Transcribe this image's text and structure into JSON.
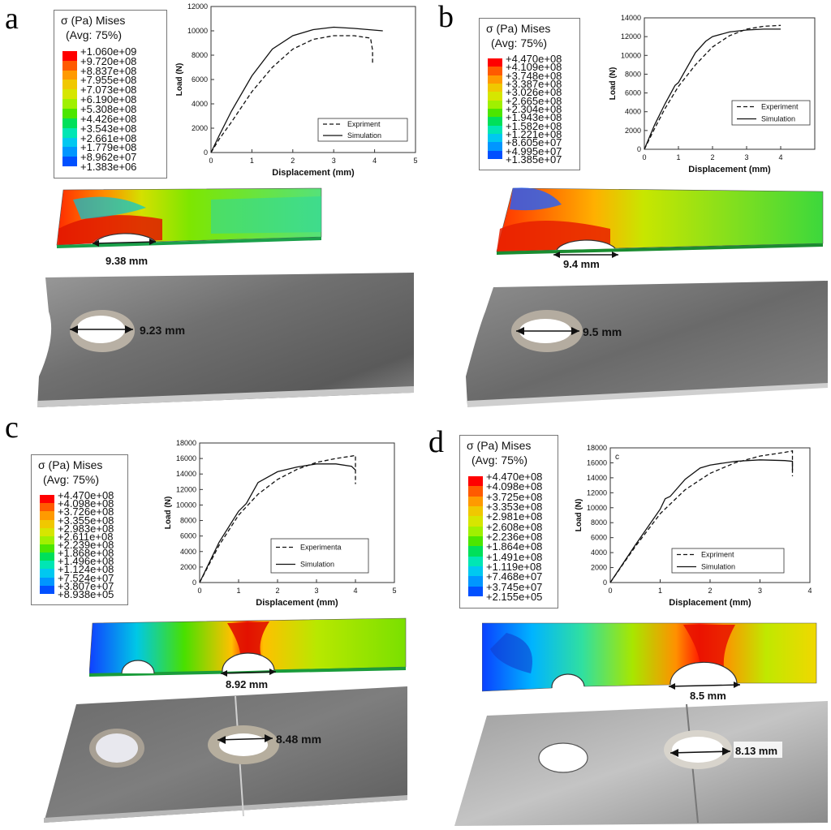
{
  "panels": [
    {
      "id": "a",
      "letter": "a",
      "legend": {
        "title1": "σ (Pa)  Mises",
        "title2": "(Avg: 75%)",
        "values": [
          "+1.060e+09",
          "+9.720e+08",
          "+8.837e+08",
          "+7.955e+08",
          "+7.073e+08",
          "+6.190e+08",
          "+5.308e+08",
          "+4.426e+08",
          "+3.543e+08",
          "+2.661e+08",
          "+1.779e+08",
          "+8.962e+07",
          "+1.383e+06"
        ]
      },
      "sim_measure": "9.38 mm",
      "exp_measure": "9.23 mm"
    },
    {
      "id": "b",
      "letter": "b",
      "legend": {
        "title1": "σ (Pa)  Mises",
        "title2": "(Avg: 75%)",
        "values": [
          "+4.470e+08",
          "+4.109e+08",
          "+3.748e+08",
          "+3.387e+08",
          "+3.026e+08",
          "+2.665e+08",
          "+2.304e+08",
          "+1.943e+08",
          "+1.582e+08",
          "+1.221e+08",
          "+8.605e+07",
          "+4.995e+07",
          "+1.385e+07"
        ]
      },
      "sim_measure": "9.4 mm",
      "exp_measure": "9.5 mm"
    },
    {
      "id": "c",
      "letter": "c",
      "legend": {
        "title1": "σ (Pa) Mises",
        "title2": "(Avg: 75%)",
        "values": [
          "+4.470e+08",
          "+4.098e+08",
          "+3.726e+08",
          "+3.355e+08",
          "+2.983e+08",
          "+2.611e+08",
          "+2.239e+08",
          "+1.868e+08",
          "+1.496e+08",
          "+1.124e+08",
          "+7.524e+07",
          "+3.807e+07",
          "+8.938e+05"
        ]
      },
      "sim_measure": "8.92 mm",
      "exp_measure": "8.48 mm"
    },
    {
      "id": "d",
      "letter": "d",
      "legend": {
        "title1": "σ (Pa)  Mises",
        "title2": "(Avg: 75%)",
        "values": [
          "+4.470e+08",
          "+4.098e+08",
          "+3.725e+08",
          "+3.353e+08",
          "+2.981e+08",
          "+2.608e+08",
          "+2.236e+08",
          "+1.864e+08",
          "+1.491e+08",
          "+1.119e+08",
          "+7.468e+07",
          "+3.745e+07",
          "+2.155e+05"
        ]
      },
      "sim_measure": "8.5 mm",
      "exp_measure": "8.13 mm"
    }
  ],
  "legend_colors": [
    "#ff0000",
    "#ff5a00",
    "#ff9a00",
    "#f0c800",
    "#d6e600",
    "#a0f000",
    "#4ce600",
    "#00e05a",
    "#00e6b4",
    "#00c8f0",
    "#0096ff",
    "#0050ff",
    "#0000e6"
  ],
  "chart_data": [
    {
      "type": "line",
      "title": "",
      "xlabel": "Displacement (mm)",
      "ylabel": "Load (N)",
      "xlim": [
        0,
        5
      ],
      "ylim": [
        0,
        12000
      ],
      "xticks": [
        0,
        1,
        2,
        3,
        4,
        5
      ],
      "yticks": [
        0,
        2000,
        4000,
        6000,
        8000,
        10000,
        12000
      ],
      "grid": false,
      "legend_position": "bottom-right",
      "series": [
        {
          "name": "Expriment",
          "style": "dashed",
          "x": [
            0,
            0.2,
            0.5,
            1.0,
            1.5,
            2.0,
            2.5,
            3.0,
            3.5,
            3.9,
            3.95,
            3.95
          ],
          "y": [
            0,
            1100,
            2500,
            5000,
            7000,
            8500,
            9300,
            9600,
            9600,
            9400,
            8400,
            7200
          ]
        },
        {
          "name": "Simulation",
          "style": "solid",
          "x": [
            0,
            0.2,
            0.5,
            1.0,
            1.5,
            2.0,
            2.5,
            3.0,
            3.5,
            4.2
          ],
          "y": [
            0,
            1400,
            3400,
            6300,
            8500,
            9600,
            10100,
            10300,
            10200,
            10000
          ]
        }
      ]
    },
    {
      "type": "line",
      "title": "",
      "xlabel": "Displacement (mm)",
      "ylabel": "Load (N)",
      "xlim": [
        0,
        5
      ],
      "ylim": [
        0,
        14000
      ],
      "xticks": [
        0,
        1,
        2,
        3,
        4
      ],
      "yticks": [
        0,
        2000,
        4000,
        6000,
        8000,
        10000,
        12000,
        14000
      ],
      "grid": false,
      "legend_position": "right",
      "series": [
        {
          "name": "Experiment",
          "style": "dashed",
          "x": [
            0,
            0.3,
            0.6,
            1.0,
            1.5,
            2.0,
            2.5,
            3.0,
            3.5,
            4.0
          ],
          "y": [
            0,
            2200,
            4300,
            6700,
            9000,
            10900,
            12100,
            12800,
            13100,
            13200
          ]
        },
        {
          "name": "Simulation",
          "style": "solid",
          "x": [
            0,
            0.3,
            0.6,
            0.9,
            1.0,
            1.5,
            1.8,
            2.0,
            2.5,
            3.0,
            3.5,
            4.0
          ],
          "y": [
            0,
            2600,
            4800,
            6800,
            7100,
            10300,
            11500,
            12000,
            12500,
            12700,
            12800,
            12800
          ]
        }
      ]
    },
    {
      "type": "line",
      "title": "",
      "xlabel": "Displacement (mm)",
      "ylabel": "Load (N)",
      "xlim": [
        0,
        5
      ],
      "ylim": [
        0,
        18000
      ],
      "xticks": [
        0,
        1,
        2,
        3,
        4,
        5
      ],
      "yticks": [
        0,
        2000,
        4000,
        6000,
        8000,
        10000,
        12000,
        14000,
        16000,
        18000
      ],
      "grid": false,
      "legend_position": "bottom-right",
      "series": [
        {
          "name": "Experimenta",
          "style": "dashed",
          "x": [
            0,
            0.5,
            1.0,
            1.5,
            2.0,
            2.5,
            3.0,
            3.5,
            3.9,
            4.0,
            4.0
          ],
          "y": [
            0,
            4800,
            8700,
            11400,
            13300,
            14600,
            15500,
            16000,
            16300,
            16400,
            12700
          ]
        },
        {
          "name": "Simulation",
          "style": "solid",
          "x": [
            0,
            0.5,
            1.0,
            1.2,
            1.5,
            2.0,
            2.5,
            3.0,
            3.5,
            3.9,
            4.0
          ],
          "y": [
            0,
            5200,
            9200,
            10200,
            12900,
            14300,
            14900,
            15300,
            15300,
            15000,
            14500
          ]
        }
      ]
    },
    {
      "type": "line",
      "title": "",
      "xlabel": "Displacement (mm)",
      "ylabel": "Load (N)",
      "annotation": "c",
      "xlim": [
        0,
        4
      ],
      "ylim": [
        0,
        18000
      ],
      "xticks": [
        0,
        1,
        2,
        3,
        4
      ],
      "yticks": [
        0,
        2000,
        4000,
        6000,
        8000,
        10000,
        12000,
        14000,
        16000,
        18000
      ],
      "grid": false,
      "legend_position": "bottom-right",
      "series": [
        {
          "name": "Expriment",
          "style": "dashed",
          "x": [
            0,
            0.5,
            1.0,
            1.5,
            2.0,
            2.5,
            3.0,
            3.5,
            3.65,
            3.65
          ],
          "y": [
            0,
            4800,
            9200,
            12400,
            14600,
            16000,
            16900,
            17400,
            17600,
            14200
          ]
        },
        {
          "name": "Simulation",
          "style": "solid",
          "x": [
            0,
            0.5,
            1.0,
            1.1,
            1.2,
            1.5,
            1.8,
            2.0,
            2.5,
            3.0,
            3.5,
            3.65,
            3.65
          ],
          "y": [
            0,
            5000,
            9800,
            11200,
            11500,
            13800,
            15300,
            15700,
            16200,
            16400,
            16300,
            16200,
            15000
          ]
        }
      ]
    }
  ]
}
